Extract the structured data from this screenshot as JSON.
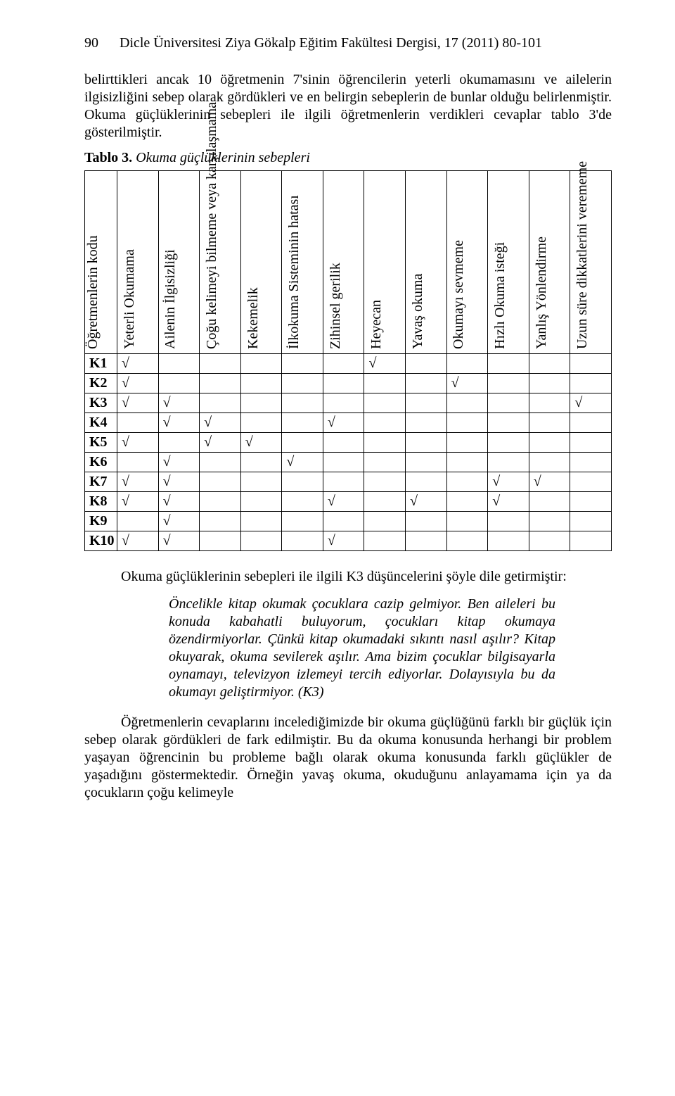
{
  "header": {
    "page_number": "90",
    "journal": "Dicle Üniversitesi Ziya Gökalp Eğitim Fakültesi Dergisi, 17 (2011) 80-101"
  },
  "intro_para": "belirttikleri ancak 10 öğretmenin 7'sinin öğrencilerin yeterli okumamasını ve ailelerin ilgisizliğini sebep olarak gördükleri ve en belirgin sebeplerin de bunlar olduğu belirlenmiştir. Okuma güçlüklerinin sebepleri ile ilgili öğretmenlerin verdikleri cevaplar tablo 3'de gösterilmiştir.",
  "table_caption": {
    "label": "Tablo 3.",
    "title": "Okuma güçlüklerinin sebepleri"
  },
  "table": {
    "columns": [
      "Öğretmenlerin kodu",
      "Yeterli Okumama",
      "Ailenin İlgisizliği",
      "Çoğu kelimeyi bilmeme veya karşılaşmama",
      "Kekemelik",
      "İlkokuma Sisteminin hatası",
      "Zihinsel gerilik",
      "Heyecan",
      "Yavaş okuma",
      "Okumayı sevmeme",
      "Hızlı Okuma isteği",
      "Yanlış Yönlendirme",
      "Uzun süre dikkatlerini verememe"
    ],
    "rows": [
      {
        "code": "K1",
        "m": [
          "√",
          "",
          "",
          "",
          "",
          "",
          "√",
          "",
          "",
          "",
          "",
          ""
        ]
      },
      {
        "code": "K2",
        "m": [
          "√",
          "",
          "",
          "",
          "",
          "",
          "",
          "",
          "√",
          "",
          "",
          ""
        ]
      },
      {
        "code": "K3",
        "m": [
          "√",
          "√",
          "",
          "",
          "",
          "",
          "",
          "",
          "",
          "",
          "",
          "√"
        ]
      },
      {
        "code": "K4",
        "m": [
          "",
          "√",
          "√",
          "",
          "",
          "√",
          "",
          "",
          "",
          "",
          "",
          ""
        ]
      },
      {
        "code": "K5",
        "m": [
          "√",
          "",
          "√",
          "√",
          "",
          "",
          "",
          "",
          "",
          "",
          "",
          ""
        ]
      },
      {
        "code": "K6",
        "m": [
          "",
          "√",
          "",
          "",
          "√",
          "",
          "",
          "",
          "",
          "",
          "",
          ""
        ]
      },
      {
        "code": "K7",
        "m": [
          "√",
          "√",
          "",
          "",
          "",
          "",
          "",
          "",
          "",
          "√",
          "√",
          ""
        ]
      },
      {
        "code": "K8",
        "m": [
          "√",
          "√",
          "",
          "",
          "",
          "√",
          "",
          "√",
          "",
          "√",
          "",
          ""
        ]
      },
      {
        "code": "K9",
        "m": [
          "",
          "√",
          "",
          "",
          "",
          "",
          "",
          "",
          "",
          "",
          "",
          ""
        ]
      },
      {
        "code": "K10",
        "m": [
          "√",
          "√",
          "",
          "",
          "",
          "√",
          "",
          "",
          "",
          "",
          "",
          ""
        ]
      }
    ]
  },
  "after_table": "Okuma güçlüklerinin sebepleri ile ilgili K3 düşüncelerini şöyle dile getirmiştir:",
  "quote": "Öncelikle kitap okumak çocuklara cazip gelmiyor. Ben aileleri bu konuda kabahatli buluyorum, çocukları kitap okumaya özendirmiyorlar. Çünkü kitap okumadaki sıkıntı nasıl aşılır? Kitap okuyarak, okuma sevilerek aşılır. Ama bizim çocuklar bilgisayarla oynamayı, televizyon izlemeyi tercih ediyorlar. Dolayısıyla bu da okumayı geliştirmiyor. (K3)",
  "closing": "Öğretmenlerin cevaplarını incelediğimizde bir okuma güçlüğünü farklı bir güçlük için sebep olarak gördükleri de fark edilmiştir. Bu da okuma konusunda herhangi bir problem yaşayan öğrencinin bu probleme bağlı olarak okuma konusunda farklı güçlükler de yaşadığını göstermektedir. Örneğin yavaş okuma, okuduğunu anlayamama için ya da çocukların çoğu kelimeyle"
}
